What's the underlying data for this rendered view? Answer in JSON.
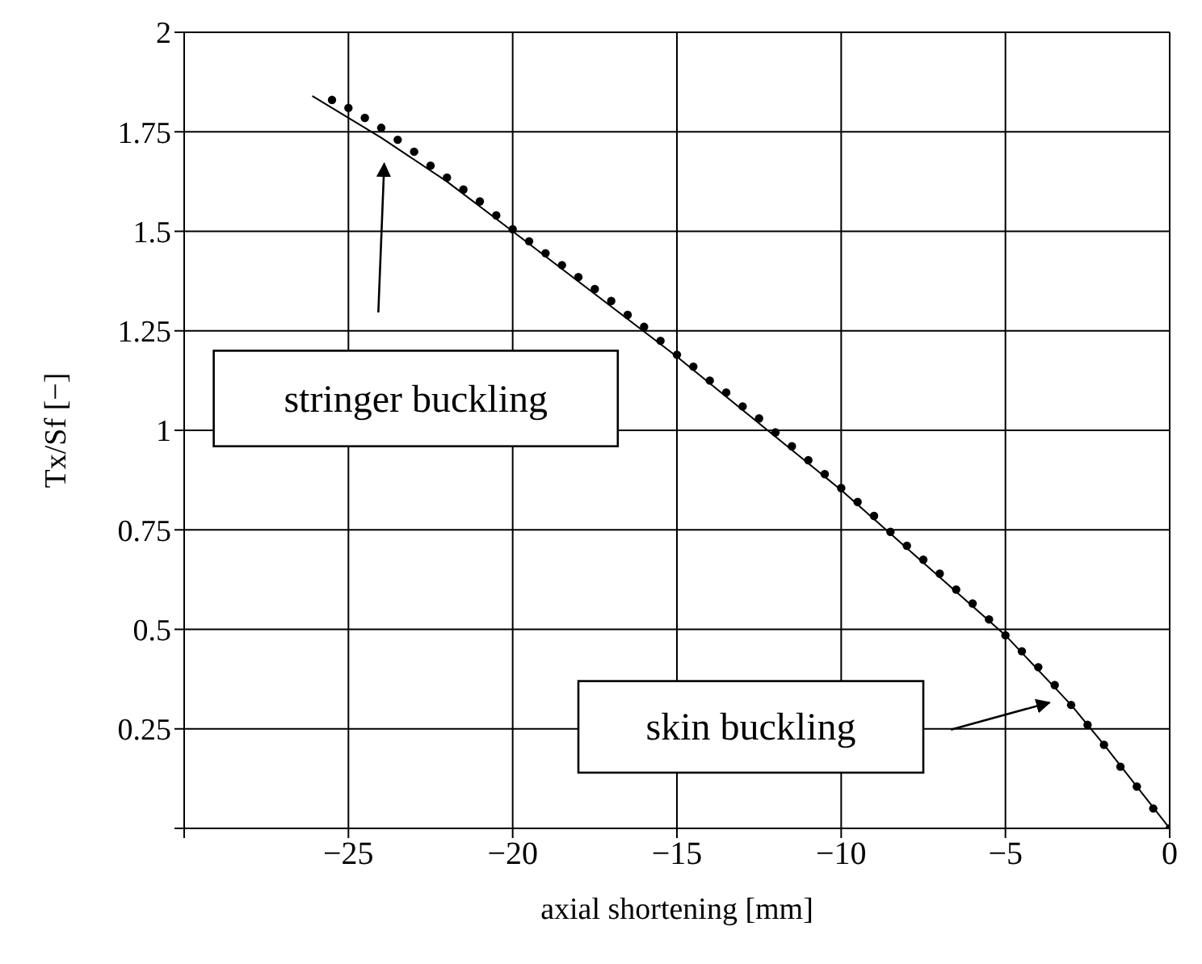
{
  "chart_data": {
    "type": "line",
    "xlabel": "axial shortening [mm]",
    "ylabel": "Tx/Sf [−]",
    "xlim": [
      -30,
      0
    ],
    "ylim": [
      0,
      2
    ],
    "xticks": [
      {
        "value": -30,
        "label": null
      },
      {
        "value": -25,
        "label": "−25"
      },
      {
        "value": -20,
        "label": "−20"
      },
      {
        "value": -15,
        "label": "−15"
      },
      {
        "value": -10,
        "label": "−10"
      },
      {
        "value": -5,
        "label": "−5"
      },
      0
    ],
    "yticks": [
      {
        "value": 0,
        "label": null
      },
      0.25,
      0.5,
      0.75,
      1,
      1.25,
      1.5,
      1.75,
      2
    ],
    "grid": true,
    "legend": false,
    "annotations": [
      "stringer buckling",
      "skin buckling"
    ],
    "series": [
      {
        "type": "scatter",
        "marker": "circle",
        "color": "#000000",
        "x": [
          -25.5,
          -25,
          -24.5,
          -24,
          -23.5,
          -23,
          -22.5,
          -22,
          -21.5,
          -21,
          -20.5,
          -20,
          -19.5,
          -19,
          -18.5,
          -18,
          -17.5,
          -17,
          -16.5,
          -16,
          -15.5,
          -15,
          -14.5,
          -14,
          -13.5,
          -13,
          -12.5,
          -12,
          -11.5,
          -11,
          -10.5,
          -10,
          -9.5,
          -9,
          -8.5,
          -8,
          -7.5,
          -7,
          -6.5,
          -6,
          -5.5,
          -5,
          -4.5,
          -4,
          -3.5,
          -3,
          -2.5,
          -2,
          -1.5,
          -1,
          -0.5,
          0
        ],
        "values": [
          1.83,
          1.81,
          1.785,
          1.76,
          1.73,
          1.7,
          1.665,
          1.635,
          1.605,
          1.575,
          1.54,
          1.505,
          1.475,
          1.445,
          1.415,
          1.385,
          1.355,
          1.325,
          1.29,
          1.26,
          1.225,
          1.19,
          1.16,
          1.125,
          1.095,
          1.06,
          1.03,
          0.995,
          0.96,
          0.925,
          0.89,
          0.855,
          0.82,
          0.785,
          0.745,
          0.71,
          0.675,
          0.64,
          0.6,
          0.565,
          0.525,
          0.485,
          0.445,
          0.405,
          0.36,
          0.31,
          0.26,
          0.21,
          0.155,
          0.105,
          0.05,
          0
        ]
      },
      {
        "marker": "none",
        "line_style": "solid",
        "color": "#000000",
        "x": [
          -26.1,
          -24,
          -22,
          -20,
          -15,
          -10,
          -5,
          -3,
          -2,
          0
        ],
        "values": [
          1.84,
          1.735,
          1.625,
          1.5,
          1.185,
          0.85,
          0.485,
          0.31,
          0.21,
          0
        ]
      }
    ]
  }
}
